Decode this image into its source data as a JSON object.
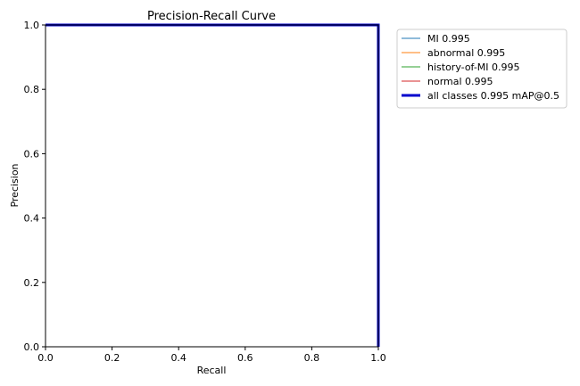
{
  "chart_data": {
    "type": "line",
    "title": "Precision-Recall Curve",
    "xlabel": "Recall",
    "ylabel": "Precision",
    "xlim": [
      0.0,
      1.0
    ],
    "ylim": [
      0.0,
      1.0
    ],
    "xticks": [
      "0.0",
      "0.2",
      "0.4",
      "0.6",
      "0.8",
      "1.0"
    ],
    "yticks": [
      "0.0",
      "0.2",
      "0.4",
      "0.6",
      "0.8",
      "1.0"
    ],
    "grid": false,
    "legend_placement": "outside-top-right",
    "series": [
      {
        "name": "MI 0.995",
        "color": "#1f77b4",
        "emphasis": false,
        "x": [
          0.0,
          1.0,
          1.0
        ],
        "y": [
          1.0,
          1.0,
          0.0
        ]
      },
      {
        "name": "abnormal 0.995",
        "color": "#ff7f0e",
        "emphasis": false,
        "x": [
          0.0,
          1.0,
          1.0
        ],
        "y": [
          1.0,
          1.0,
          0.0
        ]
      },
      {
        "name": "history-of-MI 0.995",
        "color": "#2ca02c",
        "emphasis": false,
        "x": [
          0.0,
          1.0,
          1.0
        ],
        "y": [
          1.0,
          1.0,
          0.0
        ]
      },
      {
        "name": "normal 0.995",
        "color": "#d62728",
        "emphasis": false,
        "x": [
          0.0,
          1.0,
          1.0
        ],
        "y": [
          1.0,
          1.0,
          0.0
        ]
      },
      {
        "name": "all classes 0.995 mAP@0.5",
        "color": "#0000cd",
        "emphasis": true,
        "x": [
          0.0,
          1.0,
          1.0
        ],
        "y": [
          1.0,
          1.0,
          0.0
        ]
      }
    ]
  }
}
